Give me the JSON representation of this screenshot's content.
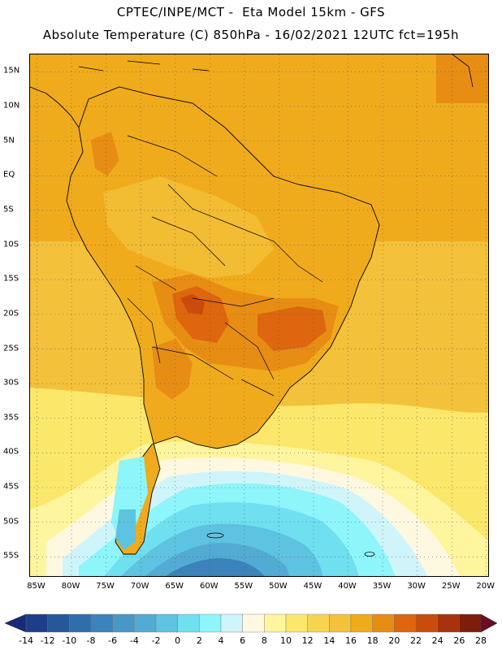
{
  "header": {
    "title_line1": "CPTEC/INPE/MCT -  Eta Model 15km - GFS",
    "title_line2": "Absolute Temperature (C) 850hPa - 16/02/2021 12UTC fct=195h"
  },
  "axes": {
    "lat_labels": [
      "15N",
      "10N",
      "5N",
      "EQ",
      "5S",
      "10S",
      "15S",
      "20S",
      "25S",
      "30S",
      "35S",
      "40S",
      "45S",
      "50S",
      "55S"
    ],
    "lat_values": [
      15,
      10,
      5,
      0,
      -5,
      -10,
      -15,
      -20,
      -25,
      -30,
      -35,
      -40,
      -45,
      -50,
      -55
    ],
    "lon_labels": [
      "85W",
      "80W",
      "75W",
      "70W",
      "65W",
      "60W",
      "55W",
      "50W",
      "45W",
      "40W",
      "35W",
      "30W",
      "25W",
      "20W"
    ],
    "lon_values": [
      -85,
      -80,
      -75,
      -70,
      -65,
      -60,
      -55,
      -50,
      -45,
      -40,
      -35,
      -30,
      -25,
      -20
    ],
    "lat_range": [
      -58,
      17.5
    ],
    "lon_range": [
      -86,
      -19.5
    ],
    "gridlines": "dotted"
  },
  "colorbar": {
    "labels": [
      "-14",
      "-12",
      "-10",
      "-8",
      "-6",
      "-4",
      "-2",
      "0",
      "2",
      "4",
      "6",
      "8",
      "10",
      "12",
      "14",
      "16",
      "18",
      "20",
      "22",
      "24",
      "26",
      "28"
    ],
    "colors": [
      "#1d3f8a",
      "#25579b",
      "#2f6dab",
      "#3b83bb",
      "#4798c7",
      "#52abd3",
      "#5dc3e0",
      "#6ee0f0",
      "#8ef5fb",
      "#cff5fb",
      "#fff8e0",
      "#fff59e",
      "#fbe76a",
      "#f7d44f",
      "#f3c13a",
      "#f0ab1c",
      "#e88d14",
      "#dd660e",
      "#c94c0c",
      "#a8320b",
      "#7d1d0c"
    ],
    "underflow_color": "#1a2a7a",
    "overflow_color": "#6a0d20"
  }
}
